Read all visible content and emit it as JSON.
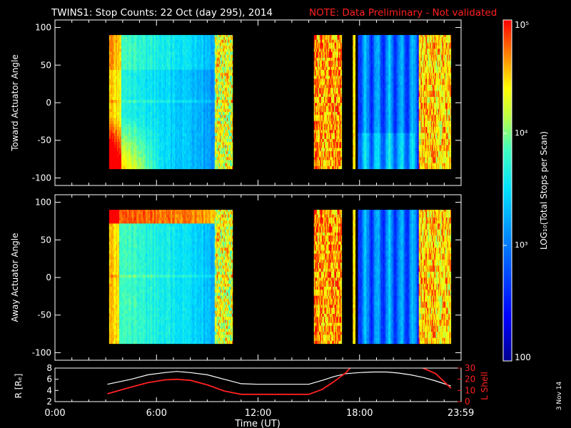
{
  "header": {
    "title": "TWINS1: Stop Counts: 22 Oct (day 295), 2014",
    "note": "NOTE: Data Preliminary - Not validated",
    "note_color": "#ff2020"
  },
  "footer": {
    "generated_date": "3 Nov 14"
  },
  "chart_data": [
    {
      "type": "heatmap",
      "ylabel": "Toward Actuator Angle",
      "xlabel": "",
      "xlim_hours": [
        0,
        24
      ],
      "ylim": [
        -110,
        110
      ],
      "y_ticks": [
        100,
        50,
        0,
        -50,
        -100
      ],
      "data_ylim": [
        -88,
        90
      ],
      "time_segments_hours": [
        [
          3.2,
          10.5
        ],
        [
          15.3,
          16.95
        ],
        [
          17.6,
          17.75
        ],
        [
          17.9,
          23.4
        ]
      ],
      "colorscale": "rainbow-log",
      "pattern": "toward"
    },
    {
      "type": "heatmap",
      "ylabel": "Away Actuator Angle",
      "xlabel": "",
      "xlim_hours": [
        0,
        24
      ],
      "ylim": [
        -110,
        110
      ],
      "y_ticks": [
        100,
        50,
        0,
        -50,
        -100
      ],
      "data_ylim": [
        -88,
        90
      ],
      "time_segments_hours": [
        [
          3.2,
          10.5
        ],
        [
          15.3,
          16.95
        ],
        [
          17.6,
          17.75
        ],
        [
          17.9,
          23.4
        ]
      ],
      "colorscale": "rainbow-log",
      "pattern": "away"
    },
    {
      "type": "line",
      "ylabel_left": "R [Rₑ]",
      "ylabel_right": "L Shell",
      "ylim_left": [
        2,
        8
      ],
      "yticks_left": [
        "2",
        "4",
        "6",
        "8"
      ],
      "ylim_right": [
        0,
        30
      ],
      "yticks_right": [
        "0",
        "10",
        "20",
        "30"
      ],
      "xlabel": "Time (UT)",
      "xticks": [
        {
          "value": 0,
          "label": "0:00"
        },
        {
          "value": 6,
          "label": "6:00"
        },
        {
          "value": 12,
          "label": "12:00"
        },
        {
          "value": 18,
          "label": "18:00"
        },
        {
          "value": 23.983,
          "label": "23:59"
        }
      ],
      "series": [
        {
          "axis": "left",
          "color": "#ffffff",
          "x": [
            3.1,
            4.5,
            5.5,
            6.5,
            7.2,
            8,
            9,
            10,
            11,
            12,
            13,
            14,
            15,
            15.8,
            16.5,
            17.2,
            18,
            18.8,
            19.6,
            20.3,
            21,
            21.8,
            22.5,
            23.4
          ],
          "y": [
            5.1,
            6,
            6.8,
            7.2,
            7.4,
            7.2,
            6.8,
            6,
            5.2,
            5.1,
            5.1,
            5.1,
            5.1,
            5.8,
            6.5,
            7,
            7.2,
            7.3,
            7.3,
            7.1,
            6.8,
            6.3,
            5.7,
            4.8
          ]
        },
        {
          "axis": "right",
          "color": "#ff2020",
          "x": [
            3.1,
            4.5,
            5.5,
            6.5,
            7.2,
            8,
            9,
            10,
            11,
            12,
            13,
            14,
            15,
            15.8,
            16.5,
            17.2,
            17.5,
            21.6,
            22.5,
            23.4
          ],
          "y": [
            7,
            13,
            17,
            19.5,
            20,
            19,
            15,
            9.5,
            6.5,
            6.5,
            6.5,
            6.5,
            6.5,
            11,
            18,
            26,
            31,
            31,
            25,
            12
          ]
        }
      ]
    }
  ],
  "colorbar": {
    "label": "LOG₁₀(Total Stops per Scan)",
    "ticks": [
      "10⁵",
      "10⁴",
      "10³",
      "100"
    ],
    "range": [
      100,
      100000
    ],
    "scale": "log"
  }
}
